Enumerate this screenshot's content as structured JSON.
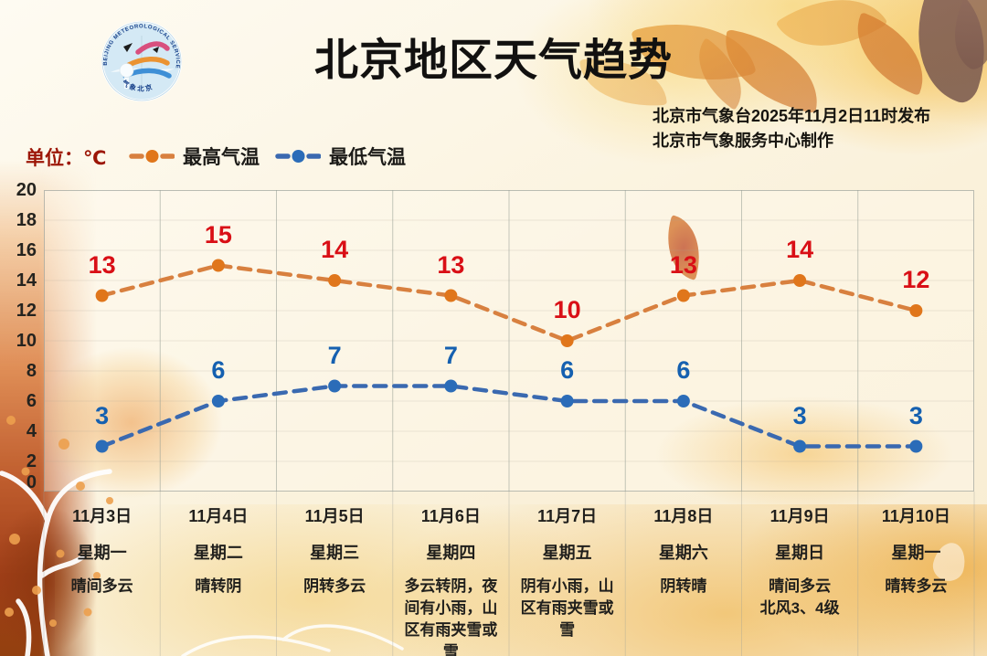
{
  "header": {
    "title": "北京地区天气趋势",
    "issued_line1": "北京市气象台2025年11月2日11时发布",
    "issued_line2": "北京市气象服务中心制作",
    "logo": {
      "top_text": "BEIJING METEOROLOGICAL SERVICE",
      "bottom_text": "气象北京"
    }
  },
  "legend": {
    "unit_label": "单位：℃"
  },
  "chart_data": {
    "type": "line",
    "title": "北京地区天气趋势",
    "ylabel": "℃",
    "ylim": [
      0,
      20
    ],
    "yticks": [
      20,
      18,
      16,
      14,
      12,
      10,
      8,
      6,
      4,
      2,
      0
    ],
    "grid": "vertical",
    "legend_position": "top-left",
    "line_style": "dashed",
    "categories": [
      {
        "date": "11月3日",
        "weekday": "星期一",
        "weather": "晴间多云"
      },
      {
        "date": "11月4日",
        "weekday": "星期二",
        "weather": "晴转阴"
      },
      {
        "date": "11月5日",
        "weekday": "星期三",
        "weather": "阴转多云"
      },
      {
        "date": "11月6日",
        "weekday": "星期四",
        "weather": "多云转阴，夜间有小雨，山区有雨夹雪或雪"
      },
      {
        "date": "11月7日",
        "weekday": "星期五",
        "weather": "阴有小雨，山区有雨夹雪或雪"
      },
      {
        "date": "11月8日",
        "weekday": "星期六",
        "weather": "阴转晴"
      },
      {
        "date": "11月9日",
        "weekday": "星期日",
        "weather": "晴间多云\n北风3、4级"
      },
      {
        "date": "11月10日",
        "weekday": "星期一",
        "weather": "晴转多云"
      }
    ],
    "series": [
      {
        "name": "最高气温",
        "color": "#d8803f",
        "marker_color": "#e0761b",
        "label_color": "#d90f16",
        "values": [
          13,
          15,
          14,
          13,
          10,
          13,
          14,
          12
        ]
      },
      {
        "name": "最低气温",
        "color": "#3a69b0",
        "marker_color": "#2b6cb8",
        "label_color": "#1560b0",
        "values": [
          3,
          6,
          7,
          7,
          6,
          6,
          3,
          3
        ]
      }
    ]
  }
}
